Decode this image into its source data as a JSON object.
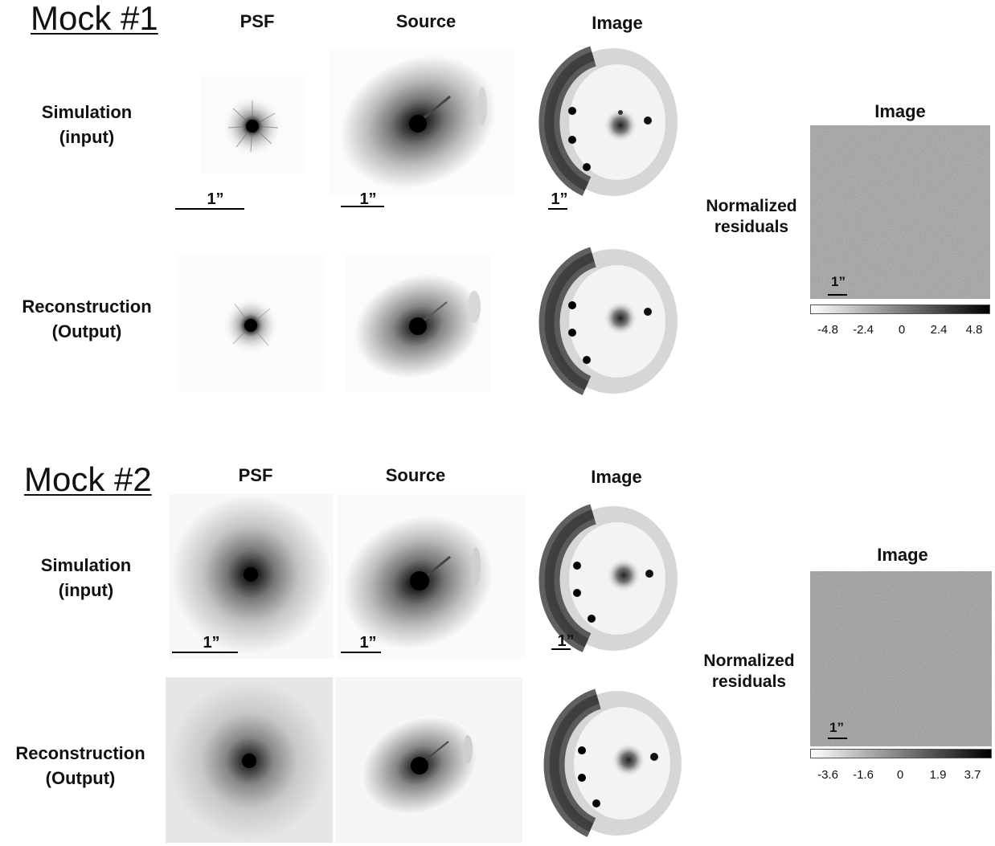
{
  "mocks": [
    {
      "title": "Mock #1",
      "columns": {
        "psf": "PSF",
        "source": "Source",
        "image": "Image"
      },
      "rows": [
        {
          "line1": "Simulation",
          "line2": "(input)"
        },
        {
          "line1": "Reconstruction",
          "line2": "(Output)"
        }
      ],
      "scale_labels": [
        "1”",
        "1”",
        "1”"
      ],
      "residuals": {
        "title": "Image",
        "label_line1": "Normalized",
        "label_line2": "residuals",
        "scale_label": "1”",
        "ticks": [
          "-4.8",
          "-2.4",
          "0",
          "2.4",
          "4.8"
        ]
      }
    },
    {
      "title": "Mock #2",
      "columns": {
        "psf": "PSF",
        "source": "Source",
        "image": "Image"
      },
      "rows": [
        {
          "line1": "Simulation",
          "line2": "(input)"
        },
        {
          "line1": "Reconstruction",
          "line2": "(Output)"
        }
      ],
      "scale_labels": [
        "1”",
        "1”",
        "1”"
      ],
      "residuals": {
        "title": "Image",
        "label_line1": "Normalized",
        "label_line2": "residuals",
        "scale_label": "1”",
        "ticks": [
          "-3.6",
          "-1.6",
          "0",
          "1.9",
          "3.7"
        ]
      }
    }
  ]
}
